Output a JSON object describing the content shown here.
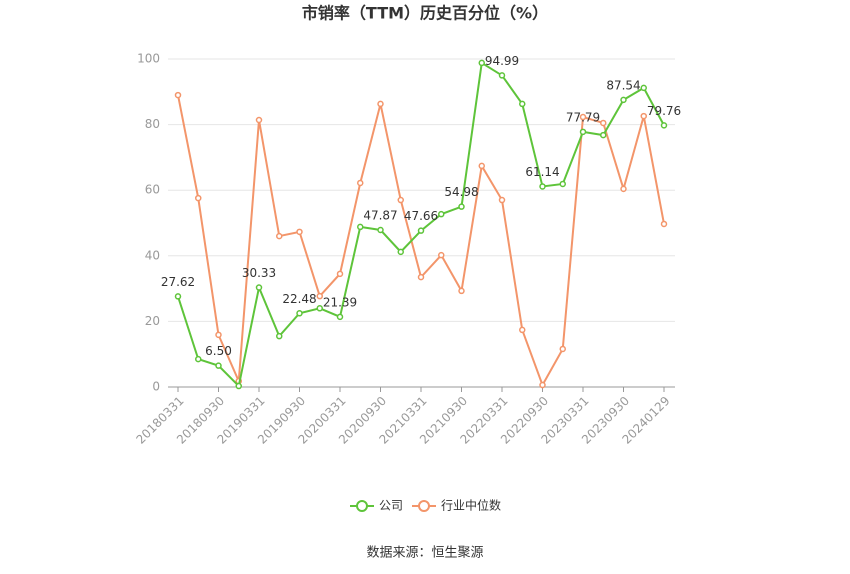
{
  "chart_data": {
    "type": "line",
    "title": "市销率（TTM）历史百分位（%）",
    "categories": [
      "20180331",
      null,
      "20180930",
      null,
      "20190331",
      null,
      "20190930",
      null,
      "20200331",
      null,
      "20200930",
      null,
      "20210331",
      null,
      "20210930",
      null,
      "20220331",
      null,
      "20220930",
      null,
      "20230331",
      null,
      "20230930",
      null,
      "20240129"
    ],
    "series": [
      {
        "name": "公司",
        "color": "#5ec43a",
        "values": [
          27.62,
          8.5,
          6.5,
          0.3,
          30.33,
          15.5,
          22.48,
          24,
          21.39,
          48.8,
          47.87,
          41.2,
          47.66,
          52.7,
          54.98,
          98.8,
          94.99,
          86.3,
          61.14,
          61.9,
          77.79,
          76.8,
          87.54,
          91.2,
          79.76
        ],
        "value_labels": [
          "27.62",
          null,
          "6.50",
          null,
          "30.33",
          null,
          "22.48",
          null,
          "21.39",
          null,
          "47.87",
          null,
          "47.66",
          null,
          "54.98",
          null,
          "94.99",
          null,
          "61.14",
          null,
          "77.79",
          null,
          "87.54",
          null,
          "79.76"
        ]
      },
      {
        "name": "行业中位数",
        "color": "#f3956a",
        "values": [
          89,
          57.6,
          15.9,
          1.8,
          81.4,
          46,
          47.3,
          27.7,
          34.5,
          62.2,
          86.3,
          57,
          33.5,
          40.2,
          29.3,
          67.4,
          57,
          17.4,
          0.6,
          11.6,
          82.3,
          80.5,
          60.4,
          82.6,
          49.7
        ]
      }
    ],
    "ylim": [
      0,
      100
    ],
    "yticks": [
      0,
      20,
      40,
      60,
      80,
      100
    ],
    "grid": true,
    "source": "数据来源：恒生聚源"
  }
}
